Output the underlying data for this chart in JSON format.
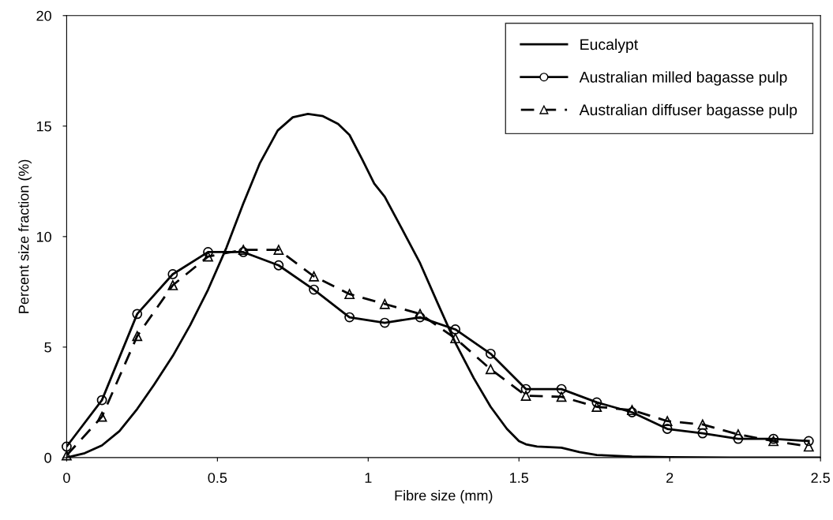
{
  "chart_data": {
    "type": "line",
    "xlabel": "Fibre size (mm)",
    "ylabel": "Percent size fraction (%)",
    "x": [
      0,
      0.117,
      0.234,
      0.352,
      0.469,
      0.586,
      0.703,
      0.82,
      0.938,
      1.055,
      1.172,
      1.289,
      1.406,
      1.523,
      1.641,
      1.758,
      1.875,
      1.992,
      2.109,
      2.227,
      2.344,
      2.461
    ],
    "xlim": [
      0,
      2.5
    ],
    "xticks": [
      0,
      0.5,
      1,
      1.5,
      2,
      2.5
    ],
    "ylim": [
      0,
      20
    ],
    "yticks": [
      0,
      5,
      10,
      15,
      20
    ],
    "grid": false,
    "legend": "top right",
    "series": [
      {
        "name": "Eucalypt",
        "color": "#000000",
        "marker": "none",
        "line_style": "solid",
        "x": [
          0,
          0.06,
          0.117,
          0.175,
          0.234,
          0.29,
          0.352,
          0.41,
          0.469,
          0.53,
          0.586,
          0.64,
          0.7,
          0.75,
          0.8,
          0.85,
          0.9,
          0.938,
          0.98,
          1.02,
          1.055,
          1.11,
          1.172,
          1.23,
          1.289,
          1.35,
          1.406,
          1.46,
          1.5,
          1.523,
          1.56,
          1.641,
          1.7,
          1.758,
          1.875,
          2.0,
          2.2,
          2.5
        ],
        "values": [
          0,
          0.2,
          0.55,
          1.2,
          2.2,
          3.3,
          4.6,
          6.0,
          7.6,
          9.5,
          11.5,
          13.3,
          14.8,
          15.4,
          15.55,
          15.45,
          15.1,
          14.6,
          13.5,
          12.4,
          11.8,
          10.4,
          8.8,
          7.0,
          5.2,
          3.6,
          2.3,
          1.3,
          0.75,
          0.6,
          0.5,
          0.45,
          0.25,
          0.12,
          0.05,
          0.02,
          0,
          0
        ]
      },
      {
        "name": "Australian milled bagasse pulp",
        "color": "#000000",
        "marker": "circle",
        "line_style": "solid",
        "values": [
          0.5,
          2.6,
          6.5,
          8.3,
          9.3,
          9.3,
          8.7,
          7.6,
          6.35,
          6.1,
          6.35,
          5.8,
          4.7,
          3.1,
          3.1,
          2.5,
          2.05,
          1.3,
          1.1,
          0.85,
          0.85,
          0.75
        ]
      },
      {
        "name": "Australian diffuser bagasse pulp",
        "color": "#000000",
        "marker": "triangle",
        "line_style": "dashed",
        "values": [
          0.1,
          1.85,
          5.5,
          7.8,
          9.1,
          9.4,
          9.4,
          8.2,
          7.4,
          6.95,
          6.5,
          5.4,
          4.0,
          2.8,
          2.75,
          2.3,
          2.15,
          1.65,
          1.5,
          1.05,
          0.75,
          0.5
        ]
      }
    ]
  }
}
